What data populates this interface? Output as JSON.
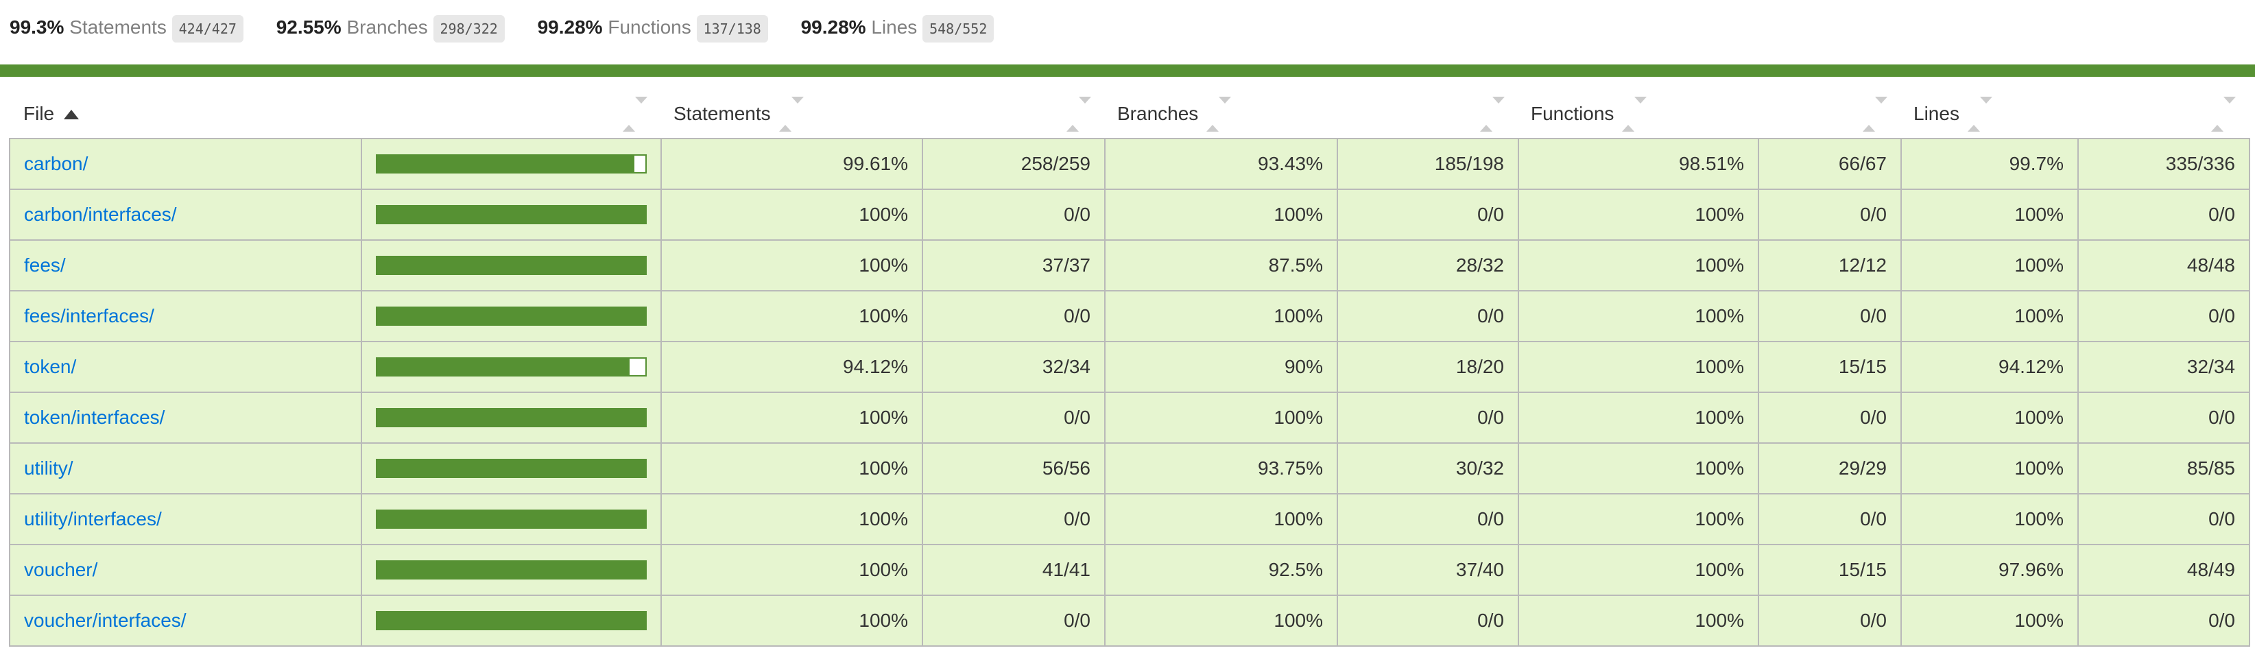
{
  "colors": {
    "dark_green": "#569133",
    "light_green_row": "#e6f5d0",
    "border_gray": "#b9b9b9",
    "link_blue": "#0074d9",
    "fraction_bg": "#e8e8e8"
  },
  "summary": {
    "metrics": [
      {
        "pct": "99.3%",
        "label": "Statements",
        "fraction": "424/427"
      },
      {
        "pct": "92.55%",
        "label": "Branches",
        "fraction": "298/322"
      },
      {
        "pct": "99.28%",
        "label": "Functions",
        "fraction": "137/138"
      },
      {
        "pct": "99.28%",
        "label": "Lines",
        "fraction": "548/552"
      }
    ]
  },
  "table": {
    "headers": {
      "file": "File",
      "statements": "Statements",
      "branches": "Branches",
      "functions": "Functions",
      "lines": "Lines"
    },
    "sort": {
      "column": "File",
      "direction": "ascending"
    },
    "rows": [
      {
        "file": "carbon/",
        "bar": 96,
        "s_pct": "99.61%",
        "s_raw": "258/259",
        "b_pct": "93.43%",
        "b_raw": "185/198",
        "f_pct": "98.51%",
        "f_raw": "66/67",
        "l_pct": "99.7%",
        "l_raw": "335/336"
      },
      {
        "file": "carbon/interfaces/",
        "bar": 100,
        "s_pct": "100%",
        "s_raw": "0/0",
        "b_pct": "100%",
        "b_raw": "0/0",
        "f_pct": "100%",
        "f_raw": "0/0",
        "l_pct": "100%",
        "l_raw": "0/0"
      },
      {
        "file": "fees/",
        "bar": 100,
        "s_pct": "100%",
        "s_raw": "37/37",
        "b_pct": "87.5%",
        "b_raw": "28/32",
        "f_pct": "100%",
        "f_raw": "12/12",
        "l_pct": "100%",
        "l_raw": "48/48"
      },
      {
        "file": "fees/interfaces/",
        "bar": 100,
        "s_pct": "100%",
        "s_raw": "0/0",
        "b_pct": "100%",
        "b_raw": "0/0",
        "f_pct": "100%",
        "f_raw": "0/0",
        "l_pct": "100%",
        "l_raw": "0/0"
      },
      {
        "file": "token/",
        "bar": 94,
        "s_pct": "94.12%",
        "s_raw": "32/34",
        "b_pct": "90%",
        "b_raw": "18/20",
        "f_pct": "100%",
        "f_raw": "15/15",
        "l_pct": "94.12%",
        "l_raw": "32/34"
      },
      {
        "file": "token/interfaces/",
        "bar": 100,
        "s_pct": "100%",
        "s_raw": "0/0",
        "b_pct": "100%",
        "b_raw": "0/0",
        "f_pct": "100%",
        "f_raw": "0/0",
        "l_pct": "100%",
        "l_raw": "0/0"
      },
      {
        "file": "utility/",
        "bar": 100,
        "s_pct": "100%",
        "s_raw": "56/56",
        "b_pct": "93.75%",
        "b_raw": "30/32",
        "f_pct": "100%",
        "f_raw": "29/29",
        "l_pct": "100%",
        "l_raw": "85/85"
      },
      {
        "file": "utility/interfaces/",
        "bar": 100,
        "s_pct": "100%",
        "s_raw": "0/0",
        "b_pct": "100%",
        "b_raw": "0/0",
        "f_pct": "100%",
        "f_raw": "0/0",
        "l_pct": "100%",
        "l_raw": "0/0"
      },
      {
        "file": "voucher/",
        "bar": 100,
        "s_pct": "100%",
        "s_raw": "41/41",
        "b_pct": "92.5%",
        "b_raw": "37/40",
        "f_pct": "100%",
        "f_raw": "15/15",
        "l_pct": "97.96%",
        "l_raw": "48/49"
      },
      {
        "file": "voucher/interfaces/",
        "bar": 100,
        "s_pct": "100%",
        "s_raw": "0/0",
        "b_pct": "100%",
        "b_raw": "0/0",
        "f_pct": "100%",
        "f_raw": "0/0",
        "l_pct": "100%",
        "l_raw": "0/0"
      }
    ]
  }
}
